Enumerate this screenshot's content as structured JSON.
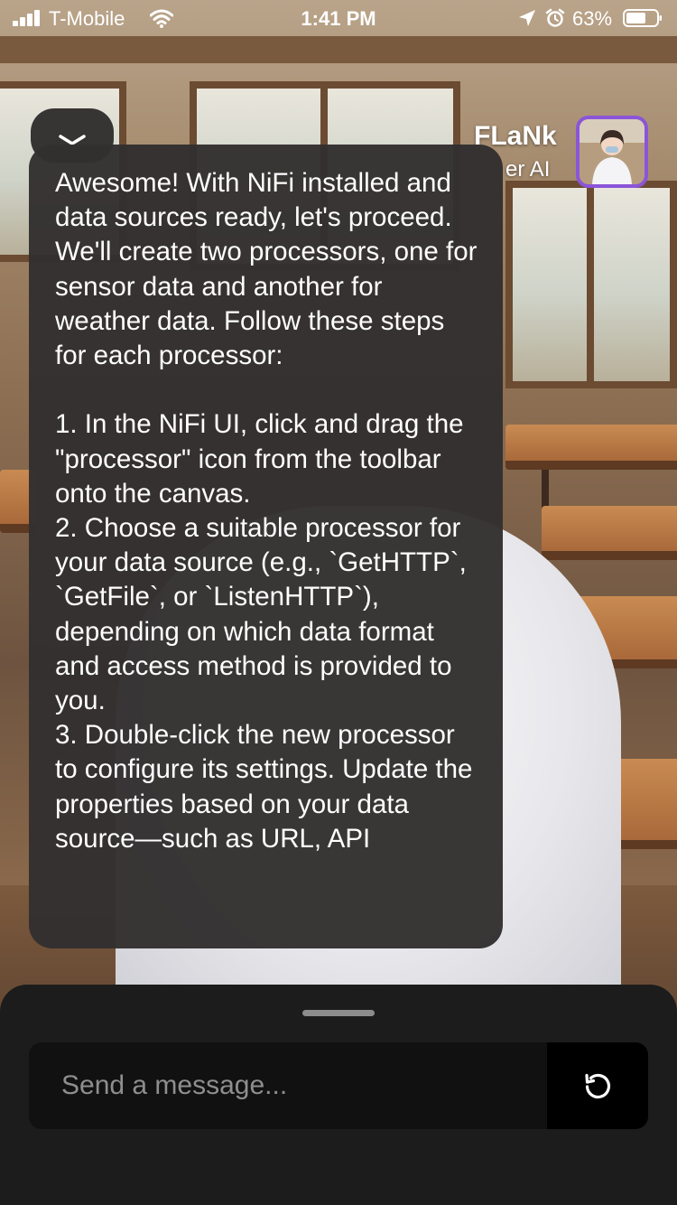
{
  "status_bar": {
    "carrier": "T-Mobile",
    "time": "1:41 PM",
    "battery_percent": "63%"
  },
  "header": {
    "character_name": "FLaNk",
    "character_subtitle": "er AI",
    "avatar_border_color": "#8a55d8"
  },
  "message": {
    "text": "Awesome! With NiFi installed and data sources ready, let's proceed. We'll create two processors, one for sensor data and another for weather data. Follow these steps for each processor:\n\n1. In the NiFi UI, click and drag the \"processor\" icon from the toolbar onto the canvas.\n2. Choose a suitable processor for your data source (e.g., `GetHTTP`, `GetFile`, or `ListenHTTP`), depending on which data format and access method is provided to you.\n3. Double-click the new processor to configure its settings. Update the properties based on your data source—such as URL, API"
  },
  "composer": {
    "placeholder": "Send a message...",
    "value": ""
  },
  "icons": {
    "signal": "cellular-signal-icon",
    "wifi": "wifi-icon",
    "location": "location-arrow-icon",
    "alarm": "alarm-clock-icon",
    "battery": "battery-icon",
    "close": "chevron-down-icon",
    "refresh": "refresh-icon"
  }
}
